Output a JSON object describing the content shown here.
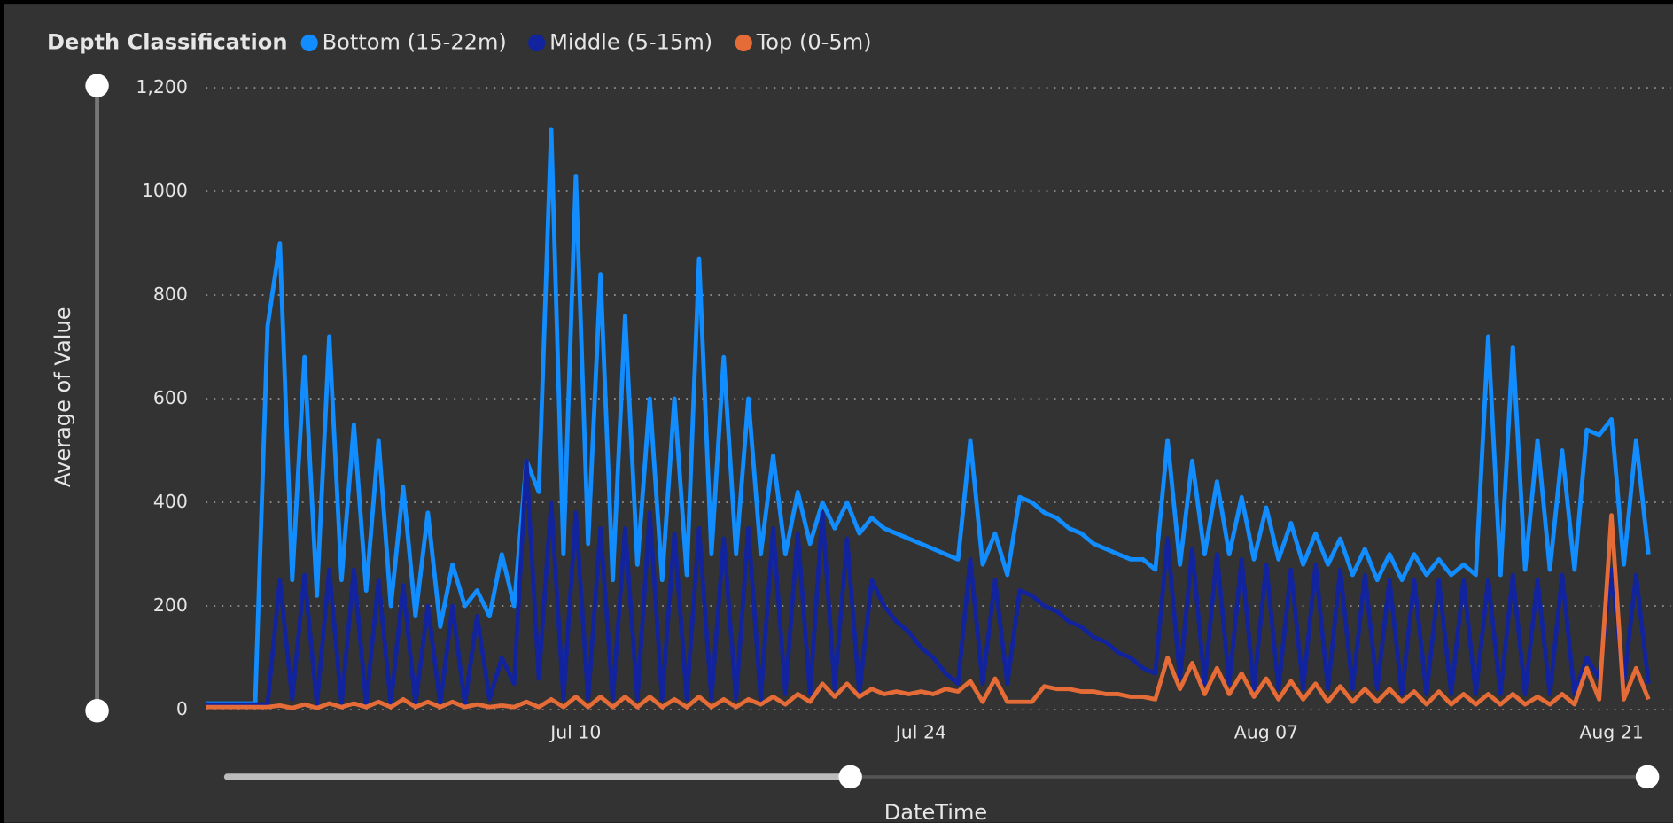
{
  "chart_data": {
    "type": "line",
    "legend_title": "Depth Classification",
    "y_label": "Average of Value",
    "x_label": "DateTime",
    "ylim": [
      0,
      1200
    ],
    "yticks": [
      0,
      200,
      400,
      600,
      800,
      1000,
      {
        "value": 1200,
        "label": "1,200"
      }
    ],
    "grid": true,
    "legend": "top-left",
    "categories": [
      null,
      null,
      null,
      null,
      null,
      null,
      null,
      null,
      null,
      null,
      null,
      null,
      null,
      null,
      null,
      null,
      null,
      null,
      null,
      null,
      null,
      null,
      null,
      null,
      null,
      null,
      null,
      null,
      null,
      null,
      "Jul 10",
      null,
      null,
      null,
      null,
      null,
      null,
      null,
      null,
      null,
      null,
      null,
      null,
      null,
      null,
      null,
      null,
      null,
      null,
      null,
      null,
      null,
      null,
      null,
      null,
      null,
      null,
      null,
      "Jul 24",
      null,
      null,
      null,
      null,
      null,
      null,
      null,
      null,
      null,
      null,
      null,
      null,
      null,
      null,
      null,
      null,
      null,
      null,
      null,
      null,
      null,
      null,
      null,
      null,
      null,
      null,
      null,
      "Aug 07",
      null,
      null,
      null,
      null,
      null,
      null,
      null,
      null,
      null,
      null,
      null,
      null,
      null,
      null,
      null,
      null,
      null,
      null,
      null,
      null,
      null,
      null,
      null,
      null,
      null,
      null,
      null,
      "Aug 21",
      null,
      null,
      null
    ],
    "series": [
      {
        "name": "Bottom (15-22m)",
        "color": "#118DFF",
        "values": [
          12,
          12,
          12,
          12,
          12,
          740,
          900,
          250,
          680,
          220,
          720,
          250,
          550,
          230,
          520,
          200,
          430,
          180,
          380,
          160,
          280,
          200,
          230,
          180,
          300,
          200,
          480,
          420,
          1120,
          300,
          1030,
          320,
          840,
          250,
          760,
          280,
          600,
          250,
          600,
          260,
          870,
          300,
          680,
          300,
          600,
          300,
          490,
          300,
          420,
          320,
          400,
          350,
          400,
          340,
          370,
          350,
          340,
          330,
          320,
          310,
          300,
          290,
          520,
          280,
          340,
          260,
          410,
          400,
          380,
          370,
          350,
          340,
          320,
          310,
          300,
          290,
          290,
          270,
          520,
          280,
          480,
          300,
          440,
          300,
          410,
          290,
          390,
          290,
          360,
          280,
          340,
          280,
          330,
          260,
          310,
          250,
          300,
          250,
          300,
          260,
          290,
          260,
          280,
          260,
          720,
          260,
          700,
          270,
          520,
          270,
          500,
          270,
          540,
          530,
          560,
          280,
          520,
          300
        ]
      },
      {
        "name": "Middle (5-15m)",
        "color": "#12239E",
        "values": [
          10,
          10,
          10,
          10,
          10,
          10,
          250,
          20,
          260,
          10,
          270,
          10,
          270,
          10,
          250,
          10,
          240,
          10,
          200,
          10,
          200,
          10,
          180,
          20,
          100,
          50,
          480,
          60,
          400,
          20,
          380,
          20,
          350,
          20,
          350,
          20,
          380,
          20,
          340,
          20,
          350,
          20,
          330,
          20,
          350,
          20,
          350,
          30,
          340,
          30,
          380,
          40,
          330,
          30,
          250,
          200,
          170,
          150,
          120,
          100,
          70,
          50,
          290,
          50,
          250,
          50,
          230,
          220,
          200,
          190,
          170,
          160,
          140,
          130,
          110,
          100,
          80,
          70,
          330,
          60,
          310,
          50,
          300,
          50,
          290,
          40,
          280,
          40,
          270,
          40,
          280,
          40,
          270,
          40,
          260,
          40,
          250,
          30,
          250,
          30,
          250,
          30,
          250,
          30,
          250,
          30,
          260,
          30,
          250,
          30,
          260,
          30,
          100,
          60,
          270,
          50,
          260,
          50
        ]
      },
      {
        "name": "Top (0-5m)",
        "color": "#E66C37",
        "values": [
          5,
          5,
          5,
          5,
          5,
          5,
          8,
          3,
          10,
          3,
          12,
          5,
          12,
          5,
          15,
          5,
          20,
          5,
          15,
          5,
          15,
          5,
          10,
          5,
          8,
          5,
          15,
          5,
          20,
          5,
          25,
          5,
          25,
          5,
          25,
          5,
          25,
          5,
          20,
          5,
          25,
          5,
          20,
          5,
          20,
          10,
          25,
          10,
          30,
          15,
          50,
          25,
          50,
          25,
          40,
          30,
          35,
          30,
          35,
          30,
          40,
          35,
          55,
          15,
          60,
          15,
          15,
          15,
          45,
          40,
          40,
          35,
          35,
          30,
          30,
          25,
          25,
          20,
          100,
          40,
          90,
          30,
          80,
          30,
          70,
          25,
          60,
          20,
          55,
          20,
          50,
          15,
          45,
          15,
          40,
          15,
          40,
          15,
          35,
          10,
          35,
          10,
          30,
          10,
          30,
          10,
          30,
          10,
          25,
          10,
          30,
          10,
          80,
          20,
          375,
          20,
          80,
          20
        ]
      }
    ]
  }
}
